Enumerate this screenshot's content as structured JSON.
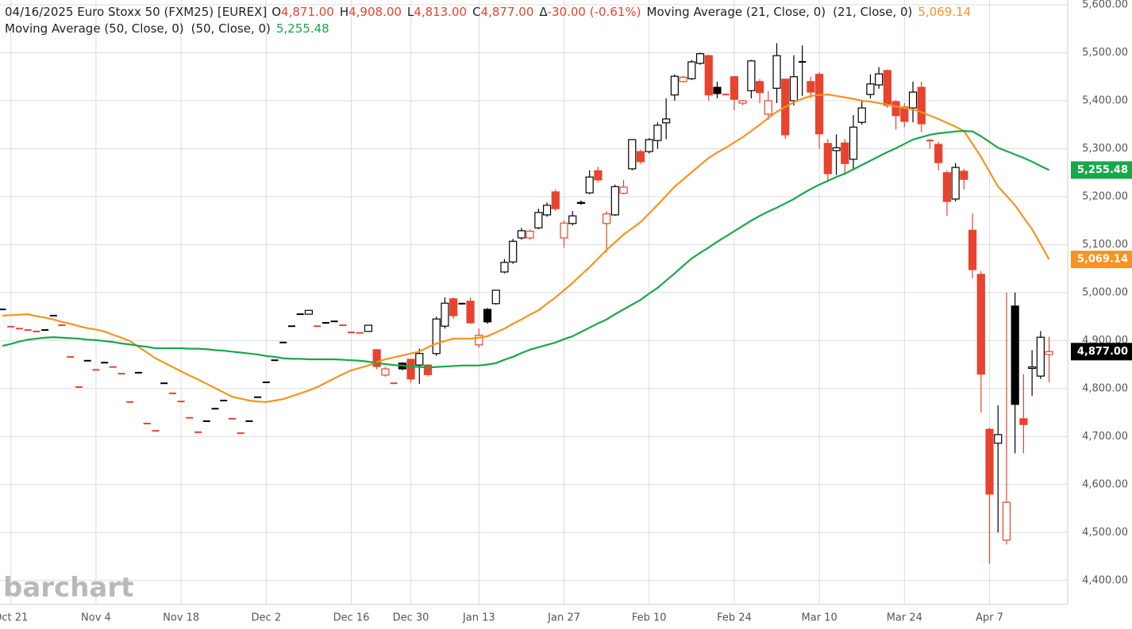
{
  "chart_data": {
    "type": "candlestick",
    "header": {
      "title": "04/16/2025 Euro Stoxx 50 (FXM25) [EUREX]",
      "open_label": "O",
      "open": "4,871.00",
      "high_label": "H",
      "high": "4,908.00",
      "low_label": "L",
      "low": "4,813.00",
      "close_label": "C",
      "close": "4,877.00",
      "change_label": "Δ",
      "change": "-30.00 (-0.61%)"
    },
    "watermark": "barchart",
    "up_color": "#000000",
    "down_color": "#e8432e",
    "grid": true,
    "categories": [
      null,
      "Oct 21",
      null,
      null,
      null,
      null,
      null,
      null,
      null,
      null,
      null,
      "Nov 4",
      null,
      null,
      null,
      null,
      null,
      null,
      null,
      null,
      null,
      "Nov 18",
      null,
      null,
      null,
      null,
      null,
      null,
      null,
      null,
      null,
      "Dec 2",
      null,
      null,
      null,
      null,
      null,
      null,
      null,
      null,
      null,
      "Dec 16",
      null,
      null,
      null,
      null,
      null,
      null,
      "Dec 30",
      null,
      null,
      null,
      null,
      null,
      null,
      null,
      "Jan 13",
      null,
      null,
      null,
      null,
      null,
      null,
      null,
      null,
      null,
      "Jan 27",
      null,
      null,
      null,
      null,
      null,
      null,
      null,
      null,
      null,
      "Feb 10",
      null,
      null,
      null,
      null,
      null,
      null,
      null,
      null,
      null,
      "Feb 24",
      null,
      null,
      null,
      null,
      null,
      null,
      null,
      null,
      null,
      "Mar 10",
      null,
      null,
      null,
      null,
      null,
      null,
      null,
      null,
      null,
      "Mar 24",
      null,
      null,
      null,
      null,
      null,
      null,
      null,
      null,
      null,
      "Apr 7",
      null,
      null,
      null,
      null,
      null,
      null,
      null
    ],
    "open": [
      4965,
      4929,
      4925,
      4922,
      4919,
      4922,
      4952,
      4932,
      4866,
      4803,
      4858,
      4839,
      4854,
      4845,
      4831,
      4772,
      4833,
      4727,
      4712,
      4811,
      4790,
      4773,
      4739,
      4709,
      4732,
      4758,
      4775,
      4737,
      4707,
      4732,
      4782,
      4813,
      4859,
      4896,
      4930,
      4955,
      4955,
      4930,
      4937,
      4940,
      4932,
      4917,
      4916,
      4919,
      4881,
      4828,
      4811,
      4853,
      4861,
      4849,
      4849,
      4873,
      4930,
      4987,
      4977,
      4982,
      4891,
      4965,
      4977,
      5043,
      5064,
      5114,
      5114,
      5135,
      5162,
      5210,
      5114,
      5144,
      5186,
      5208,
      5254,
      5144,
      5162,
      5207,
      5258,
      5294,
      5294,
      5317,
      5354,
      5412,
      5440,
      5446,
      5478,
      5494,
      5428,
      5413,
      5450,
      5395,
      5421,
      5440,
      5372,
      5426,
      5445,
      5400,
      5481,
      5440,
      5455,
      5311,
      5296,
      5312,
      5278,
      5355,
      5413,
      5433,
      5463,
      5398,
      5387,
      5385,
      5428,
      5317,
      5309,
      5250,
      5195,
      5253,
      5130,
      5038,
      4715,
      4686,
      4484,
      4972,
      4737,
      4842,
      4826,
      4871
    ],
    "high": [
      4965,
      4929,
      4925,
      4922,
      4919,
      4922,
      4952,
      4932,
      4866,
      4803,
      4858,
      4839,
      4854,
      4845,
      4831,
      4772,
      4833,
      4727,
      4712,
      4811,
      4790,
      4773,
      4739,
      4709,
      4732,
      4758,
      4775,
      4737,
      4707,
      4732,
      4782,
      4813,
      4859,
      4896,
      4930,
      4955,
      4963,
      4930,
      4937,
      4940,
      4932,
      4917,
      4916,
      4932,
      4881,
      4845,
      4811,
      4855,
      4862,
      4883,
      4851,
      4950,
      4990,
      4990,
      4979,
      4990,
      4925,
      4968,
      5005,
      5070,
      5112,
      5135,
      5132,
      5175,
      5188,
      5215,
      5150,
      5170,
      5192,
      5255,
      5262,
      5170,
      5225,
      5235,
      5320,
      5298,
      5322,
      5355,
      5405,
      5455,
      5452,
      5485,
      5500,
      5496,
      5440,
      5413,
      5452,
      5402,
      5485,
      5445,
      5420,
      5520,
      5445,
      5495,
      5515,
      5450,
      5460,
      5320,
      5330,
      5320,
      5370,
      5400,
      5455,
      5470,
      5465,
      5402,
      5395,
      5440,
      5440,
      5320,
      5315,
      5255,
      5270,
      5258,
      5165,
      5045,
      4718,
      4765,
      5000,
      5000,
      4830,
      4880,
      4920,
      4908
    ],
    "low": [
      4965,
      4929,
      4925,
      4922,
      4919,
      4922,
      4952,
      4932,
      4866,
      4803,
      4858,
      4839,
      4854,
      4845,
      4831,
      4772,
      4833,
      4727,
      4712,
      4811,
      4790,
      4773,
      4739,
      4709,
      4732,
      4758,
      4775,
      4737,
      4707,
      4732,
      4782,
      4813,
      4859,
      4896,
      4930,
      4955,
      4955,
      4930,
      4937,
      4940,
      4932,
      4917,
      4916,
      4919,
      4840,
      4825,
      4811,
      4838,
      4812,
      4810,
      4825,
      4868,
      4925,
      4945,
      4975,
      4935,
      4885,
      4935,
      4975,
      5040,
      5060,
      5110,
      5110,
      5132,
      5158,
      5170,
      5094,
      5140,
      5183,
      5205,
      5230,
      5084,
      5160,
      5205,
      5255,
      5268,
      5290,
      5300,
      5320,
      5400,
      5438,
      5443,
      5475,
      5400,
      5405,
      5413,
      5380,
      5390,
      5405,
      5395,
      5360,
      5395,
      5320,
      5390,
      5410,
      5405,
      5300,
      5230,
      5245,
      5245,
      5255,
      5350,
      5405,
      5425,
      5385,
      5340,
      5345,
      5355,
      5335,
      5300,
      5255,
      5160,
      5190,
      5215,
      5030,
      4750,
      4435,
      4500,
      4475,
      4665,
      4665,
      4785,
      4820,
      4813
    ],
    "close": [
      4965,
      4929,
      4925,
      4922,
      4919,
      4922,
      4952,
      4932,
      4866,
      4803,
      4858,
      4839,
      4854,
      4845,
      4831,
      4772,
      4833,
      4727,
      4712,
      4811,
      4790,
      4773,
      4739,
      4709,
      4732,
      4758,
      4775,
      4737,
      4707,
      4732,
      4782,
      4813,
      4859,
      4896,
      4930,
      4955,
      4963,
      4930,
      4937,
      4940,
      4932,
      4917,
      4916,
      4932,
      4846,
      4841,
      4811,
      4841,
      4820,
      4873,
      4829,
      4945,
      4978,
      4952,
      4977,
      4937,
      4911,
      4939,
      5005,
      5063,
      5107,
      5129,
      5128,
      5167,
      5182,
      5175,
      5145,
      5160,
      5188,
      5241,
      5235,
      5164,
      5221,
      5220,
      5319,
      5273,
      5319,
      5349,
      5362,
      5451,
      5449,
      5481,
      5498,
      5412,
      5415,
      5413,
      5403,
      5400,
      5483,
      5417,
      5400,
      5494,
      5329,
      5450,
      5481,
      5418,
      5331,
      5248,
      5302,
      5269,
      5345,
      5385,
      5435,
      5456,
      5390,
      5369,
      5357,
      5418,
      5352,
      5317,
      5271,
      5190,
      5261,
      5236,
      5048,
      4830,
      4580,
      4704,
      4563,
      4767,
      4725,
      4845,
      4907,
      4877
    ],
    "series": [
      {
        "name": "Moving Average (21, Close, 0)",
        "inputs": "(21, Close, 0)",
        "last_label": "5,069.14",
        "color": "#f7931e",
        "values": [
          4952,
          4953,
          4954,
          4955,
          4951,
          4948,
          4944,
          4939,
          4935,
          4930,
          4926,
          4923,
          4919,
          4912,
          4906,
          4899,
          4887,
          4875,
          4863,
          4854,
          4845,
          4836,
          4827,
          4819,
          4810,
          4801,
          4792,
          4783,
          4779,
          4775,
          4773,
          4772,
          4775,
          4778,
          4784,
          4790,
          4796,
          4803,
          4812,
          4821,
          4830,
          4838,
          4843,
          4848,
          4855,
          4861,
          4865,
          4869,
          4873,
          4877,
          4886,
          4894,
          4899,
          4904,
          4904,
          4904,
          4906,
          4909,
          4917,
          4925,
          4935,
          4944,
          4954,
          4963,
          4977,
          4990,
          5005,
          5020,
          5037,
          5053,
          5071,
          5089,
          5105,
          5121,
          5134,
          5147,
          5165,
          5183,
          5202,
          5221,
          5236,
          5251,
          5266,
          5281,
          5292,
          5302,
          5313,
          5324,
          5337,
          5350,
          5364,
          5377,
          5387,
          5397,
          5404,
          5410,
          5412,
          5413,
          5410,
          5407,
          5404,
          5400,
          5398,
          5395,
          5392,
          5388,
          5385,
          5382,
          5376,
          5369,
          5362,
          5354,
          5346,
          5337,
          5310,
          5283,
          5252,
          5221,
          5202,
          5182,
          5157,
          5132,
          5101,
          5069.14
        ]
      },
      {
        "name": "Moving Average (50, Close, 0)",
        "inputs": "(50, Close, 0)",
        "last_label": "5,255.48",
        "color": "#17a84a",
        "values": [
          4889,
          4893,
          4898,
          4902,
          4904,
          4906,
          4907,
          4906,
          4905,
          4904,
          4902,
          4901,
          4899,
          4897,
          4894,
          4892,
          4889,
          4887,
          4884,
          4884,
          4884,
          4884,
          4883,
          4883,
          4882,
          4880,
          4879,
          4877,
          4875,
          4873,
          4871,
          4868,
          4866,
          4863,
          4862,
          4862,
          4861,
          4861,
          4861,
          4861,
          4860,
          4859,
          4858,
          4856,
          4853,
          4851,
          4849,
          4848,
          4846,
          4845,
          4844,
          4845,
          4846,
          4847,
          4848,
          4848,
          4848,
          4850,
          4853,
          4860,
          4866,
          4874,
          4881,
          4886,
          4891,
          4896,
          4903,
          4909,
          4918,
          4927,
          4936,
          4944,
          4955,
          4965,
          4975,
          4985,
          4998,
          5010,
          5025,
          5040,
          5056,
          5071,
          5083,
          5094,
          5106,
          5117,
          5128,
          5139,
          5150,
          5160,
          5169,
          5177,
          5186,
          5195,
          5206,
          5216,
          5225,
          5233,
          5241,
          5248,
          5257,
          5266,
          5275,
          5284,
          5293,
          5301,
          5310,
          5319,
          5324,
          5329,
          5332,
          5334,
          5336,
          5337,
          5336,
          5326,
          5314,
          5302,
          5295,
          5288,
          5281,
          5273,
          5264,
          5255.48
        ]
      }
    ],
    "ylim": [
      4350,
      5610
    ],
    "yticks": [
      {
        "value": 4400,
        "label": "4,400.00"
      },
      {
        "value": 4500,
        "label": "4,500.00"
      },
      {
        "value": 4600,
        "label": "4,600.00"
      },
      {
        "value": 4700,
        "label": "4,700.00"
      },
      {
        "value": 4800,
        "label": "4,800.00"
      },
      {
        "value": 4900,
        "label": "4,900.00"
      },
      {
        "value": 5000,
        "label": "5,000.00"
      },
      {
        "value": 5100,
        "label": "5,100.00"
      },
      {
        "value": 5200,
        "label": "5,200.00"
      },
      {
        "value": 5300,
        "label": "5,300.00"
      },
      {
        "value": 5400,
        "label": "5,400.00"
      },
      {
        "value": 5500,
        "label": "5,500.00"
      },
      {
        "value": 5600,
        "label": "5,600.00"
      }
    ]
  }
}
